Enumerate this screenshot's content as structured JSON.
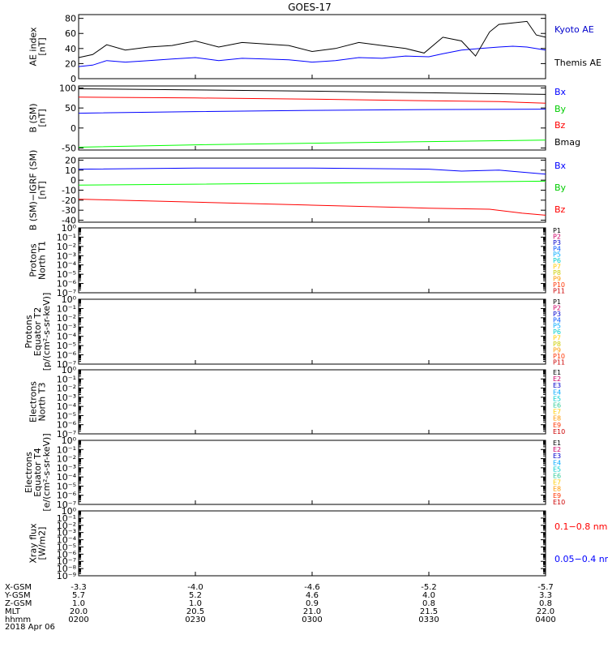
{
  "title": "GOES-17",
  "colors": {
    "black": "#000000",
    "blue": "#0000ff",
    "green": "#00ff00",
    "red": "#ff0000",
    "ae_label_blue": "#0000cc",
    "by_label_green": "#00cc00"
  },
  "chart_data": [
    {
      "type": "line",
      "name": "ae-index",
      "ylabel": [
        "AE index",
        "[nT]"
      ],
      "ylim": [
        0,
        85
      ],
      "yticks": [
        0,
        20,
        40,
        60,
        80
      ],
      "series": [
        {
          "name": "Kyoto AE",
          "color": "#0000ff",
          "x": [
            0,
            0.03,
            0.06,
            0.1,
            0.15,
            0.2,
            0.25,
            0.3,
            0.35,
            0.4,
            0.45,
            0.5,
            0.55,
            0.6,
            0.65,
            0.7,
            0.75,
            0.78,
            0.82,
            0.86,
            0.9,
            0.93,
            0.96,
            1.0
          ],
          "values": [
            16,
            18,
            24,
            22,
            24,
            26,
            28,
            24,
            27,
            26,
            25,
            22,
            24,
            28,
            27,
            30,
            29,
            33,
            38,
            40,
            42,
            43,
            42,
            38
          ]
        },
        {
          "name": "Themis AE",
          "color": "#000000",
          "x": [
            0,
            0.03,
            0.06,
            0.1,
            0.15,
            0.2,
            0.25,
            0.3,
            0.35,
            0.4,
            0.45,
            0.5,
            0.55,
            0.6,
            0.65,
            0.7,
            0.74,
            0.78,
            0.82,
            0.85,
            0.88,
            0.9,
            0.93,
            0.96,
            0.98,
            1.0
          ],
          "values": [
            28,
            32,
            45,
            38,
            42,
            44,
            50,
            42,
            48,
            46,
            44,
            36,
            40,
            48,
            44,
            40,
            34,
            55,
            50,
            30,
            62,
            72,
            74,
            76,
            58,
            55
          ]
        }
      ],
      "legend": [
        "Kyoto AE",
        "Themis AE"
      ]
    },
    {
      "type": "line",
      "name": "b-sm",
      "ylabel": [
        "B (SM)",
        "[nT]"
      ],
      "ylim": [
        -55,
        105
      ],
      "yticks": [
        -50,
        0,
        50,
        100
      ],
      "series": [
        {
          "name": "Bmag",
          "color": "#000000",
          "x": [
            0,
            0.25,
            0.5,
            0.75,
            1.0
          ],
          "values": [
            98,
            95,
            92,
            88,
            84
          ]
        },
        {
          "name": "Bx",
          "color": "#0000ff",
          "x": [
            0,
            0.25,
            0.5,
            0.75,
            1.0
          ],
          "values": [
            37,
            41,
            44,
            46,
            47
          ]
        },
        {
          "name": "By",
          "color": "#00ff00",
          "x": [
            0,
            0.25,
            0.5,
            0.75,
            1.0
          ],
          "values": [
            -48,
            -42,
            -38,
            -34,
            -30
          ]
        },
        {
          "name": "Bz",
          "color": "#ff0000",
          "x": [
            0,
            0.25,
            0.5,
            0.75,
            0.9,
            1.0
          ],
          "values": [
            77,
            75,
            72,
            68,
            66,
            62
          ]
        }
      ],
      "legend": [
        "Bx",
        "By",
        "Bz",
        "Bmag"
      ]
    },
    {
      "type": "line",
      "name": "b-minus-igrf",
      "ylabel": [
        "B (SM)−IGRF (SM)",
        "[nT]"
      ],
      "ylim": [
        -42,
        22
      ],
      "yticks": [
        -40,
        -30,
        -20,
        -10,
        0,
        10,
        20
      ],
      "series": [
        {
          "name": "Bx",
          "color": "#0000ff",
          "x": [
            0,
            0.25,
            0.5,
            0.75,
            0.82,
            0.9,
            1.0
          ],
          "values": [
            11,
            12,
            12,
            11,
            9,
            10,
            6
          ]
        },
        {
          "name": "By",
          "color": "#00ff00",
          "x": [
            0,
            0.25,
            0.5,
            0.75,
            1.0
          ],
          "values": [
            -5,
            -4,
            -3,
            -2,
            -1
          ]
        },
        {
          "name": "Bz",
          "color": "#ff0000",
          "x": [
            0,
            0.25,
            0.5,
            0.75,
            0.88,
            0.95,
            1.0
          ],
          "values": [
            -19,
            -22,
            -25,
            -28,
            -29,
            -33,
            -35
          ]
        }
      ],
      "legend": [
        "Bx",
        "By",
        "Bz"
      ]
    },
    {
      "type": "line",
      "name": "protons-north-t1",
      "ylabel": [
        "Protons",
        "North T1"
      ],
      "log_ylim": [
        -7,
        0
      ],
      "series": [],
      "legend": [
        "P1",
        "P2",
        "P3",
        "P4",
        "P5",
        "P6",
        "P7",
        "P8",
        "P9",
        "P10",
        "P11"
      ]
    },
    {
      "type": "line",
      "name": "protons-equator-t2",
      "ylabel": [
        "Protons",
        "Equator T2",
        "[p/(cm²-s-sr-keV)]"
      ],
      "log_ylim": [
        -7,
        0
      ],
      "series": [],
      "legend": [
        "P1",
        "P2",
        "P3",
        "P4",
        "P5",
        "P6",
        "P7",
        "P8",
        "P9",
        "P10",
        "P11"
      ]
    },
    {
      "type": "line",
      "name": "electrons-north-t3",
      "ylabel": [
        "Electrons",
        "North T3"
      ],
      "log_ylim": [
        -7,
        0
      ],
      "series": [],
      "legend": [
        "E1",
        "E2",
        "E3",
        "E4",
        "E5",
        "E6",
        "E7",
        "E8",
        "E9",
        "E10"
      ]
    },
    {
      "type": "line",
      "name": "electrons-equator-t4",
      "ylabel": [
        "Electrons",
        "Equator T4",
        "[e/(cm²-s-sr-keV)]"
      ],
      "log_ylim": [
        -7,
        0
      ],
      "series": [],
      "legend": [
        "E1",
        "E2",
        "E3",
        "E4",
        "E5",
        "E6",
        "E7",
        "E8",
        "E9",
        "E10"
      ]
    },
    {
      "type": "line",
      "name": "xray-flux",
      "ylabel": [
        "Xray flux",
        "[W/m2]"
      ],
      "log_ylim": [
        -9,
        0
      ],
      "series": [],
      "legend": [
        "0.1−0.8 nm",
        "0.05−0.4 nm"
      ]
    }
  ],
  "legend_colors": {
    "P": [
      "#000000",
      "#cc0066",
      "#0000cc",
      "#0055ff",
      "#00aaff",
      "#00cccc",
      "#ffcc00",
      "#cccc00",
      "#ff9900",
      "#ff3300",
      "#cc0000"
    ],
    "E": [
      "#000000",
      "#cc0066",
      "#0000cc",
      "#00aaff",
      "#00cccc",
      "#33cc99",
      "#ffcc00",
      "#ff9900",
      "#ff3300",
      "#cc0000"
    ],
    "X": [
      "#ff0000",
      "#0000ff"
    ]
  },
  "footer": {
    "row_labels": [
      "X-GSM",
      "Y-GSM",
      "Z-GSM",
      "MLT",
      "hhmm",
      "2018 Apr 06"
    ],
    "columns": [
      {
        "x": "-3.3",
        "y": "5.7",
        "z": "1.0",
        "mlt": "20.0",
        "hhmm": "0200"
      },
      {
        "x": "-4.0",
        "y": "5.2",
        "z": "1.0",
        "mlt": "20.5",
        "hhmm": "0230"
      },
      {
        "x": "-4.6",
        "y": "4.6",
        "z": "0.9",
        "mlt": "21.0",
        "hhmm": "0300"
      },
      {
        "x": "-5.2",
        "y": "4.0",
        "z": "0.8",
        "mlt": "21.5",
        "hhmm": "0330"
      },
      {
        "x": "-5.7",
        "y": "3.3",
        "z": "0.8",
        "mlt": "22.0",
        "hhmm": "0400"
      }
    ]
  }
}
